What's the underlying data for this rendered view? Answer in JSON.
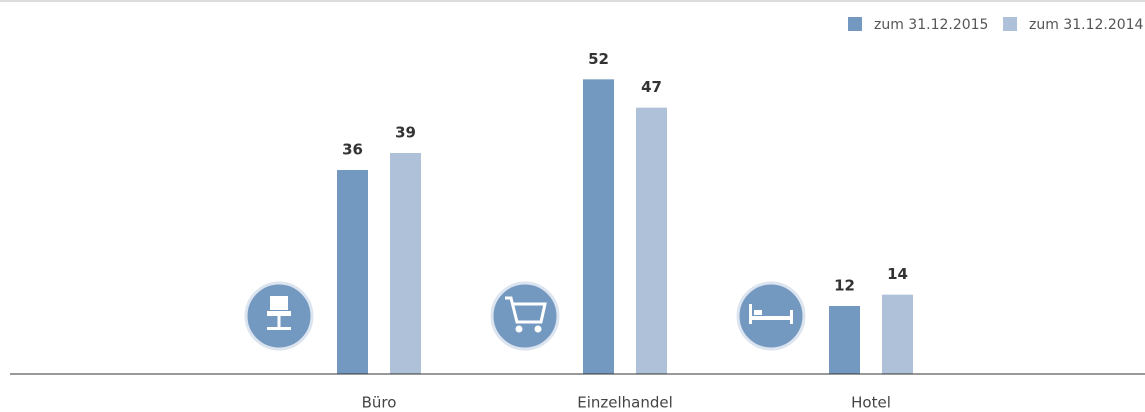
{
  "chart_data": {
    "type": "bar",
    "categories": [
      "Büro",
      "Einzelhandel",
      "Hotel"
    ],
    "series": [
      {
        "name": "zum 31.12.2015",
        "color": "#7499c0",
        "values": [
          36,
          52,
          12
        ]
      },
      {
        "name": "zum 31.12.2014",
        "color": "#aec1d9",
        "values": [
          39,
          47,
          14
        ]
      }
    ],
    "ylim": [
      0,
      60
    ],
    "legend": "top-right"
  }
}
